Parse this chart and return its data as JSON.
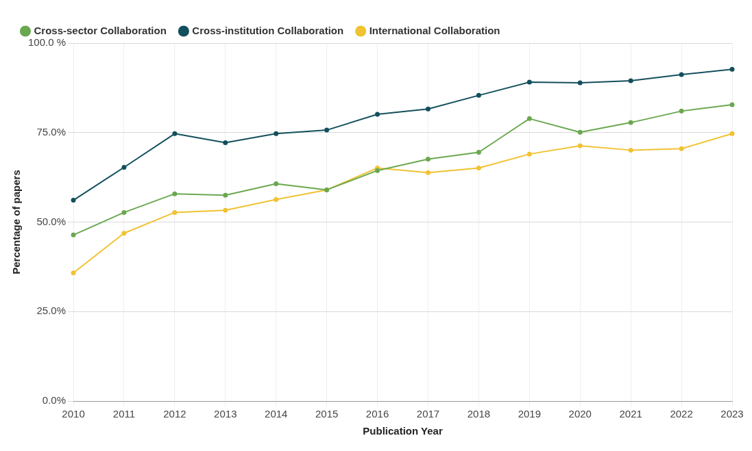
{
  "chart_data": {
    "type": "line",
    "xlabel": "Publication Year",
    "ylabel": "Percentage of papers",
    "x": [
      2010,
      2011,
      2012,
      2013,
      2014,
      2015,
      2016,
      2017,
      2018,
      2019,
      2020,
      2021,
      2022,
      2023
    ],
    "series": [
      {
        "name": "Cross-sector Collaboration",
        "color": "#6aa84f",
        "values": [
          46.4,
          52.7,
          57.9,
          57.5,
          60.7,
          59.0,
          64.4,
          67.6,
          69.5,
          78.9,
          75.1,
          77.8,
          81.0,
          82.8
        ]
      },
      {
        "name": "Cross-institution Collaboration",
        "color": "#134f5c",
        "values": [
          56.1,
          65.3,
          74.7,
          72.2,
          74.7,
          75.7,
          80.1,
          81.6,
          85.4,
          89.1,
          88.9,
          89.5,
          91.2,
          92.7
        ]
      },
      {
        "name": "International Collaboration",
        "color": "#f1c232",
        "values": [
          35.8,
          46.9,
          52.7,
          53.3,
          56.3,
          59.0,
          65.1,
          63.8,
          65.1,
          69.0,
          71.3,
          70.1,
          70.5,
          74.7
        ]
      }
    ],
    "xlim": [
      2010,
      2023
    ],
    "xticks": [
      2010,
      2011,
      2012,
      2013,
      2014,
      2015,
      2016,
      2017,
      2018,
      2019,
      2020,
      2021,
      2022,
      2023
    ],
    "ylim": [
      0,
      100
    ],
    "yticks": [
      {
        "value": 0,
        "label": "0.0%"
      },
      {
        "value": 25,
        "label": "25.0%"
      },
      {
        "value": 50,
        "label": "50.0%"
      },
      {
        "value": 75,
        "label": "75.0%"
      },
      {
        "value": 100,
        "label": "100.0 %"
      }
    ],
    "grid": true,
    "legend": "top",
    "marker": "circle",
    "line_style": "solid"
  }
}
